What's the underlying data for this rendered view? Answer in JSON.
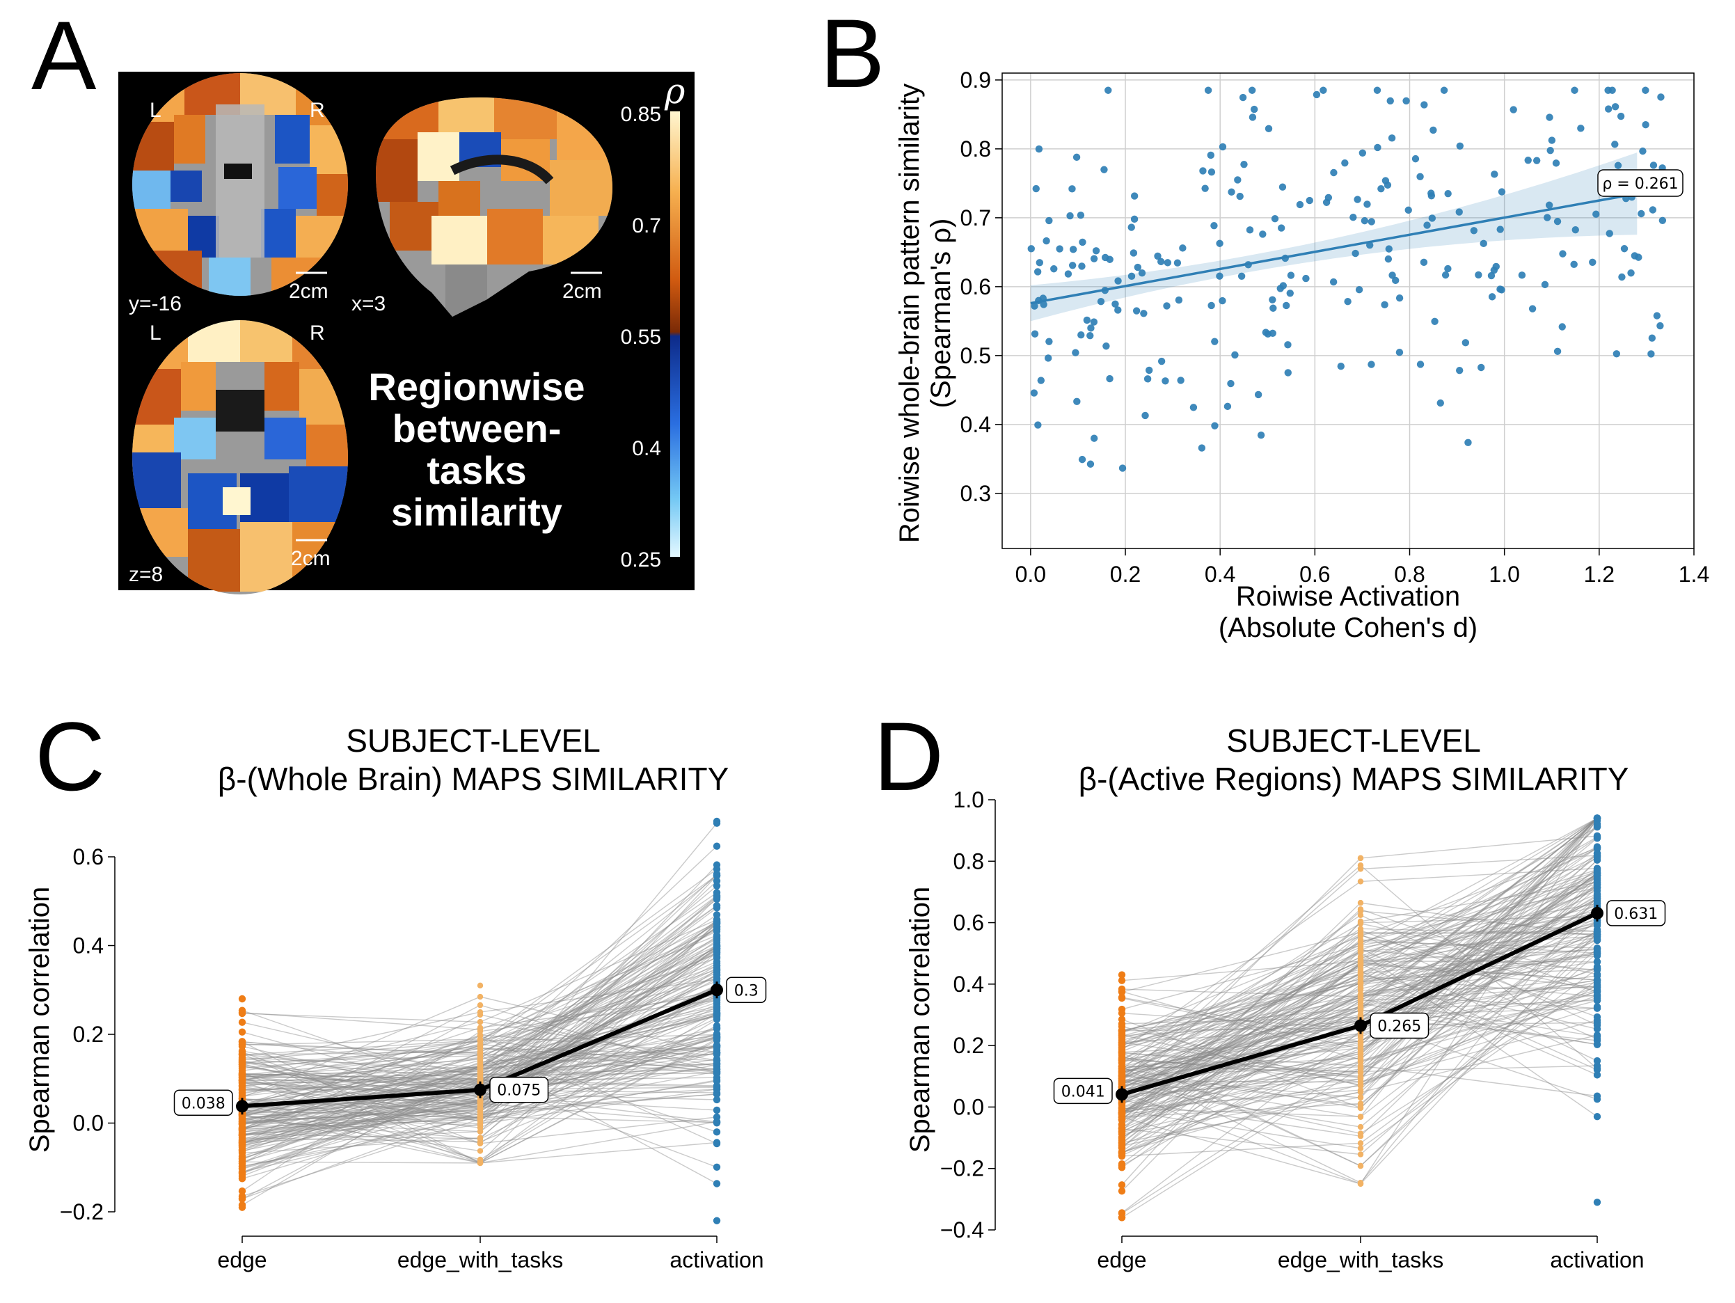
{
  "panels": {
    "A": {
      "letter": "A",
      "slice_labels": {
        "coronal": "y=-16",
        "sagittal": "x=3",
        "axial": "z=8"
      },
      "orientation": {
        "left": "L",
        "right": "R"
      },
      "scale_bar": "2cm",
      "caption_lines": [
        "Regionwise",
        "between-",
        "tasks",
        "similarity"
      ],
      "colorbar": {
        "symbol": "ρ",
        "ticks": [
          "0.85",
          "0.7",
          "0.55",
          "0.4",
          "0.25"
        ]
      }
    },
    "B": {
      "letter": "B"
    },
    "C": {
      "letter": "C"
    },
    "D": {
      "letter": "D"
    }
  },
  "chart_data": [
    {
      "panel": "B",
      "type": "scatter",
      "xlabel": [
        "Roiwise Activation",
        "(Absolute Cohen's d)"
      ],
      "ylabel": [
        "Roiwise whole-brain pattern similarity",
        "(Spearman's ρ)"
      ],
      "xlim": [
        -0.06,
        1.4
      ],
      "ylim": [
        0.22,
        0.91
      ],
      "xticks": [
        0.0,
        0.2,
        0.4,
        0.6,
        0.8,
        1.0,
        1.2,
        1.4
      ],
      "xtick_labels": [
        "0.0",
        "0.2",
        "0.4",
        "0.6",
        "0.8",
        "1.0",
        "1.2",
        "1.4"
      ],
      "yticks": [
        0.3,
        0.4,
        0.5,
        0.6,
        0.7,
        0.8,
        0.9
      ],
      "ytick_labels": [
        "0.3",
        "0.4",
        "0.5",
        "0.6",
        "0.7",
        "0.8",
        "0.9"
      ],
      "grid": true,
      "point_color": "#2f7fb5",
      "fit": {
        "x": [
          0.0,
          1.28
        ],
        "y": [
          0.576,
          0.735
        ]
      },
      "annotation": "ρ = 0.261",
      "n_points": 250,
      "random_seed": 7
    },
    {
      "panel": "C",
      "type": "line",
      "title": [
        "SUBJECT-LEVEL",
        "β-(Whole Brain) MAPS SIMILARITY"
      ],
      "ylabel": "Spearman correlation",
      "categories": [
        "edge",
        "edge_with_tasks",
        "activation"
      ],
      "ylim": [
        -0.2,
        0.6
      ],
      "yticks": [
        -0.2,
        0.0,
        0.2,
        0.4,
        0.6
      ],
      "ytick_labels": [
        "−0.2",
        "0.0",
        "0.2",
        "0.4",
        "0.6"
      ],
      "means": [
        0.038,
        0.075,
        0.3
      ],
      "mean_labels": [
        "0.038",
        "0.075",
        "0.3"
      ],
      "colors": [
        "#ef7d16",
        "#f2b264",
        "#2f7fb5"
      ],
      "subjects": 180,
      "ranges": [
        [
          -0.19,
          0.28
        ],
        [
          -0.09,
          0.31
        ],
        [
          -0.22,
          0.68
        ]
      ],
      "random_seed": 11
    },
    {
      "panel": "D",
      "type": "line",
      "title": [
        "SUBJECT-LEVEL",
        "β-(Active Regions) MAPS SIMILARITY"
      ],
      "ylabel": "Spearman correlation",
      "categories": [
        "edge",
        "edge_with_tasks",
        "activation"
      ],
      "ylim": [
        -0.4,
        1.0
      ],
      "yticks": [
        -0.4,
        -0.2,
        0.0,
        0.2,
        0.4,
        0.6,
        0.8,
        1.0
      ],
      "ytick_labels": [
        "−0.4",
        "−0.2",
        "0.0",
        "0.2",
        "0.4",
        "0.6",
        "0.8",
        "1.0"
      ],
      "means": [
        0.041,
        0.265,
        0.631
      ],
      "mean_labels": [
        "0.041",
        "0.265",
        "0.631"
      ],
      "colors": [
        "#ef7d16",
        "#f2b264",
        "#2f7fb5"
      ],
      "subjects": 180,
      "ranges": [
        [
          -0.36,
          0.43
        ],
        [
          -0.25,
          0.81
        ],
        [
          -0.31,
          0.94
        ]
      ],
      "random_seed": 23
    }
  ]
}
